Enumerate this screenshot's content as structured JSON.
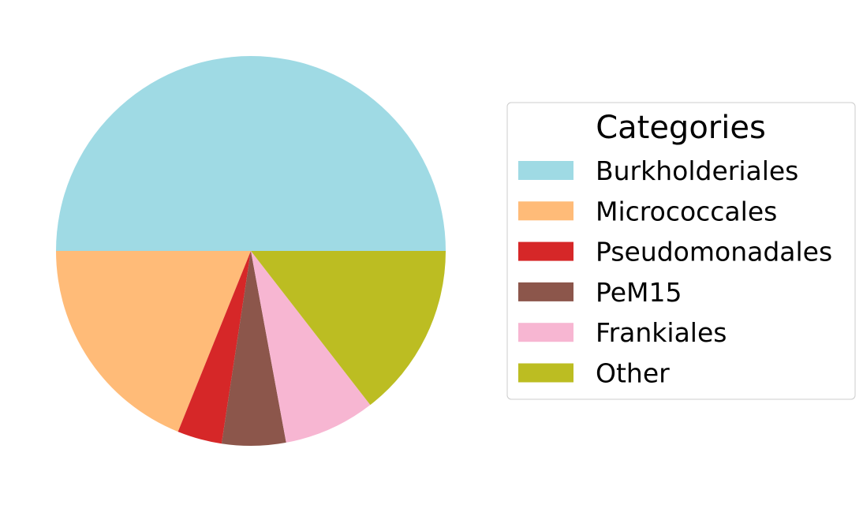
{
  "chart_data": {
    "type": "pie",
    "title": "",
    "slices": [
      {
        "label": "Burkholderiales",
        "value": 50.0,
        "color": "#9fdae4"
      },
      {
        "label": "Micrococcales",
        "value": 18.9,
        "color": "#ffbb78"
      },
      {
        "label": "Pseudomonadales",
        "value": 3.7,
        "color": "#d62728"
      },
      {
        "label": "PeM15",
        "value": 5.3,
        "color": "#8c564b"
      },
      {
        "label": "Frankiales",
        "value": 7.6,
        "color": "#f7b6d2"
      },
      {
        "label": "Other",
        "value": 14.5,
        "color": "#bcbd22"
      }
    ],
    "start_angle_deg": 0,
    "direction": "counterclockwise",
    "legend": {
      "title": "Categories",
      "placement": "right"
    }
  }
}
